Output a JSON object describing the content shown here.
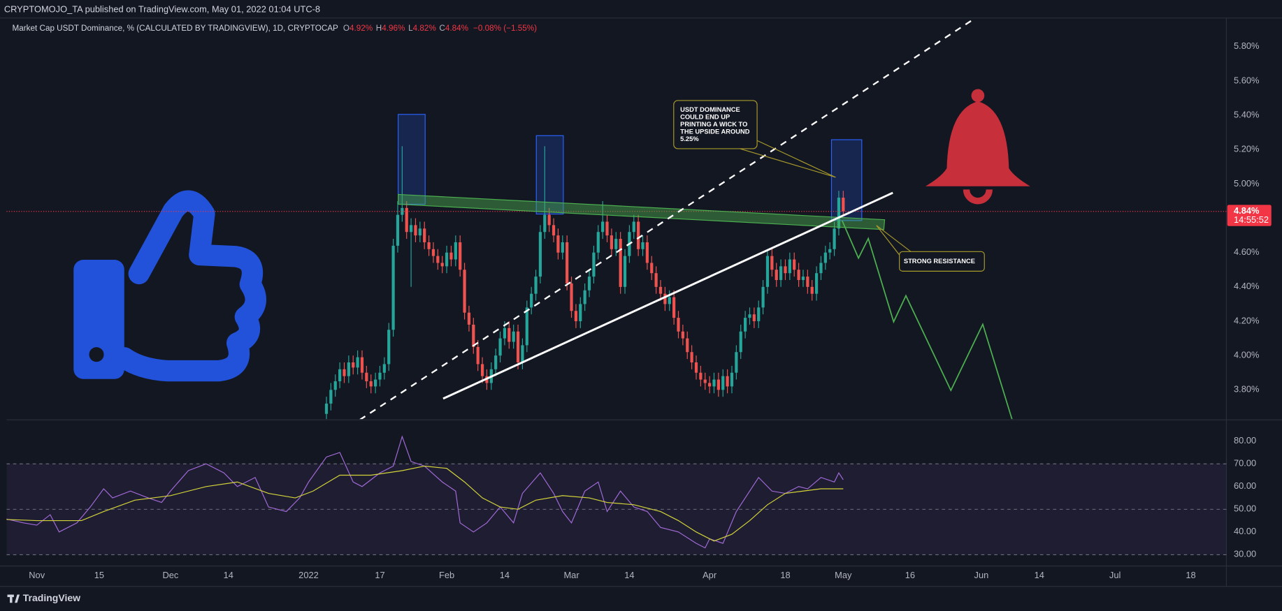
{
  "header": "CRYPTOMOJO_TA published on TradingView.com, May 01, 2022 01:04 UTC-8",
  "footer": "TradingView",
  "chart_data": [
    {
      "type": "candlestick",
      "title": "Market Cap USDT Dominance, % (CALCULATED BY TRADINGVIEW), 1D, CRYPTOCAP",
      "ohlc_readout": [
        [
          "O",
          "4.92%"
        ],
        [
          "H",
          "4.96%"
        ],
        [
          "L",
          "4.82%"
        ],
        [
          "C",
          "4.84%"
        ]
      ],
      "change": "−0.08% (−1.55%)",
      "up_color": "#26a69a",
      "down_color": "#ef5350",
      "xlim": [
        -6.8,
        267
      ],
      "ylim": [
        3.63,
        5.967
      ],
      "yticks": [
        {
          "value": 3.8,
          "label": "3.80%"
        },
        {
          "value": 4.0,
          "label": "4.00%"
        },
        {
          "value": 4.2,
          "label": "4.20%"
        },
        {
          "value": 4.4,
          "label": "4.40%"
        },
        {
          "value": 4.6,
          "label": "4.60%"
        },
        {
          "value": 4.8,
          "label": "4.80%"
        },
        {
          "value": 5.0,
          "label": "5.00%"
        },
        {
          "value": 5.2,
          "label": "5.20%"
        },
        {
          "value": 5.4,
          "label": "5.40%"
        },
        {
          "value": 5.6,
          "label": "5.60%"
        },
        {
          "value": 5.8,
          "label": "5.80%"
        }
      ],
      "last_price": {
        "value": 4.84,
        "label": "4.84%"
      },
      "countdown": "14:55:52",
      "annotations": [
        {
          "lines": [
            "USDT DOMINANCE",
            "COULD END UP",
            "PRINTING A WICK TO",
            "THE UPSIDE  AROUND",
            "5.25%"
          ]
        },
        {
          "lines": [
            "STRONG RESISTANCE"
          ]
        }
      ],
      "x": [
        65,
        66,
        67,
        68,
        69,
        70,
        71,
        72,
        73,
        74,
        75,
        76,
        77,
        78,
        79,
        80,
        81,
        82,
        83,
        84,
        85,
        86,
        87,
        88,
        89,
        90,
        91,
        92,
        93,
        94,
        95,
        96,
        97,
        98,
        99,
        100,
        101,
        102,
        103,
        104,
        105,
        106,
        107,
        108,
        109,
        110,
        111,
        112,
        113,
        114,
        115,
        116,
        117,
        118,
        119,
        120,
        121,
        122,
        123,
        124,
        125,
        126,
        127,
        128,
        129,
        130,
        131,
        132,
        133,
        134,
        135,
        136,
        137,
        138,
        139,
        140,
        141,
        142,
        143,
        144,
        145,
        146,
        147,
        148,
        149,
        150,
        151,
        152,
        153,
        154,
        155,
        156,
        157,
        158,
        159,
        160,
        161,
        162,
        163,
        164,
        165,
        166,
        167,
        168,
        169,
        170,
        171,
        172,
        173,
        174,
        175,
        176,
        177,
        178,
        179,
        180,
        181
      ],
      "open": [
        3.66,
        3.72,
        3.8,
        3.85,
        3.92,
        3.88,
        3.96,
        3.93,
        3.99,
        3.9,
        3.85,
        3.82,
        3.86,
        3.9,
        3.95,
        4.15,
        4.64,
        4.82,
        4.86,
        4.72,
        4.76,
        4.7,
        4.74,
        4.66,
        4.62,
        4.58,
        4.54,
        4.52,
        4.6,
        4.56,
        4.66,
        4.5,
        4.25,
        4.18,
        4.05,
        3.95,
        3.88,
        3.84,
        3.92,
        4.0,
        4.1,
        4.16,
        4.08,
        4.14,
        3.96,
        4.06,
        4.28,
        4.36,
        4.46,
        4.72,
        4.82,
        4.76,
        4.7,
        4.6,
        4.66,
        4.42,
        4.26,
        4.2,
        4.3,
        4.38,
        4.46,
        4.6,
        4.72,
        4.78,
        4.7,
        4.62,
        4.68,
        4.4,
        4.58,
        4.72,
        4.78,
        4.62,
        4.66,
        4.54,
        4.48,
        4.4,
        4.36,
        4.3,
        4.34,
        4.22,
        4.14,
        4.1,
        4.02,
        3.96,
        3.9,
        3.86,
        3.84,
        3.82,
        3.86,
        3.8,
        3.88,
        3.82,
        3.9,
        4.02,
        4.14,
        4.22,
        4.24,
        4.2,
        4.28,
        4.4,
        4.58,
        4.5,
        4.44,
        4.52,
        4.48,
        4.56,
        4.5,
        4.44,
        4.46,
        4.4,
        4.36,
        4.48,
        4.54,
        4.6,
        4.62,
        4.74,
        4.92
      ],
      "high": [
        3.76,
        3.84,
        3.89,
        3.96,
        3.96,
        4.0,
        4.0,
        4.03,
        4.03,
        3.94,
        3.89,
        3.9,
        3.94,
        3.99,
        4.19,
        4.68,
        4.9,
        5.22,
        4.9,
        4.8,
        4.8,
        4.78,
        4.78,
        4.7,
        4.66,
        4.62,
        4.58,
        4.64,
        4.64,
        4.7,
        4.7,
        4.54,
        4.29,
        4.22,
        4.09,
        3.99,
        3.92,
        3.96,
        4.04,
        4.14,
        4.2,
        4.2,
        4.18,
        4.18,
        4.1,
        4.32,
        4.4,
        4.5,
        4.76,
        5.22,
        4.86,
        4.8,
        4.74,
        4.7,
        4.7,
        4.46,
        4.3,
        4.34,
        4.42,
        4.5,
        4.64,
        4.76,
        4.9,
        4.82,
        4.74,
        4.72,
        4.72,
        4.62,
        4.76,
        4.82,
        4.82,
        4.7,
        4.7,
        4.58,
        4.52,
        4.44,
        4.4,
        4.38,
        4.38,
        4.26,
        4.18,
        4.14,
        4.06,
        4.0,
        3.94,
        3.9,
        3.88,
        3.9,
        3.9,
        3.92,
        3.92,
        3.94,
        4.06,
        4.18,
        4.26,
        4.28,
        4.28,
        4.32,
        4.44,
        4.62,
        4.62,
        4.54,
        4.56,
        4.56,
        4.6,
        4.6,
        4.54,
        4.5,
        4.5,
        4.44,
        4.52,
        4.58,
        4.64,
        4.66,
        4.78,
        4.96,
        4.96
      ],
      "low": [
        3.62,
        3.68,
        3.76,
        3.81,
        3.84,
        3.84,
        3.89,
        3.89,
        3.86,
        3.81,
        3.78,
        3.78,
        3.82,
        3.86,
        3.91,
        4.11,
        4.6,
        4.78,
        4.68,
        4.4,
        4.66,
        4.66,
        4.62,
        4.58,
        4.54,
        4.5,
        4.48,
        4.48,
        4.52,
        4.52,
        4.46,
        4.21,
        4.14,
        4.01,
        3.91,
        3.84,
        3.8,
        3.8,
        3.88,
        3.96,
        4.06,
        4.04,
        4.04,
        3.92,
        3.92,
        4.02,
        4.24,
        4.32,
        4.42,
        4.68,
        4.72,
        4.66,
        4.56,
        4.56,
        4.38,
        4.22,
        4.16,
        4.16,
        4.26,
        4.34,
        4.42,
        4.56,
        4.68,
        4.66,
        4.58,
        4.58,
        4.36,
        4.36,
        4.54,
        4.68,
        4.58,
        4.58,
        4.5,
        4.44,
        4.36,
        4.32,
        4.26,
        4.26,
        4.18,
        4.1,
        4.06,
        3.98,
        3.92,
        3.86,
        3.82,
        3.8,
        3.78,
        3.78,
        3.76,
        3.76,
        3.78,
        3.78,
        3.86,
        3.98,
        4.1,
        4.18,
        4.16,
        4.16,
        4.24,
        4.36,
        4.46,
        4.4,
        4.4,
        4.44,
        4.44,
        4.46,
        4.4,
        4.4,
        4.36,
        4.32,
        4.32,
        4.44,
        4.5,
        4.56,
        4.58,
        4.7,
        4.82
      ],
      "close": [
        3.72,
        3.8,
        3.85,
        3.92,
        3.88,
        3.96,
        3.93,
        3.99,
        3.9,
        3.85,
        3.82,
        3.86,
        3.9,
        3.95,
        4.15,
        4.64,
        4.82,
        4.86,
        4.72,
        4.76,
        4.7,
        4.74,
        4.66,
        4.62,
        4.58,
        4.54,
        4.52,
        4.6,
        4.56,
        4.66,
        4.5,
        4.25,
        4.18,
        4.05,
        3.95,
        3.88,
        3.84,
        3.92,
        4.0,
        4.1,
        4.16,
        4.08,
        4.14,
        3.96,
        4.06,
        4.28,
        4.36,
        4.46,
        4.72,
        4.82,
        4.76,
        4.7,
        4.6,
        4.66,
        4.42,
        4.26,
        4.2,
        4.3,
        4.38,
        4.46,
        4.6,
        4.72,
        4.78,
        4.7,
        4.62,
        4.68,
        4.4,
        4.58,
        4.72,
        4.78,
        4.62,
        4.66,
        4.54,
        4.48,
        4.4,
        4.36,
        4.3,
        4.34,
        4.22,
        4.14,
        4.1,
        4.02,
        3.96,
        3.9,
        3.86,
        3.84,
        3.82,
        3.86,
        3.8,
        3.88,
        3.82,
        3.9,
        4.02,
        4.14,
        4.22,
        4.24,
        4.2,
        4.28,
        4.4,
        4.58,
        4.5,
        4.44,
        4.52,
        4.48,
        4.56,
        4.5,
        4.44,
        4.46,
        4.4,
        4.36,
        4.48,
        4.54,
        4.6,
        4.62,
        4.74,
        4.92,
        4.84
      ]
    },
    {
      "type": "line",
      "xlim": [
        -6.8,
        267
      ],
      "ylim": [
        25,
        89
      ],
      "yticks": [
        {
          "value": 30,
          "label": "30.00"
        },
        {
          "value": 40,
          "label": "40.00"
        },
        {
          "value": 50,
          "label": "50.00"
        },
        {
          "value": 60,
          "label": "60.00"
        },
        {
          "value": 70,
          "label": "70.00"
        },
        {
          "value": 80,
          "label": "80.00"
        }
      ],
      "levels": [
        70,
        50,
        30
      ],
      "xticks": [
        {
          "value": 0,
          "label": "Nov"
        },
        {
          "value": 14,
          "label": "15"
        },
        {
          "value": 30,
          "label": "Dec"
        },
        {
          "value": 43,
          "label": "14"
        },
        {
          "value": 61,
          "label": "2022"
        },
        {
          "value": 77,
          "label": "17"
        },
        {
          "value": 92,
          "label": "Feb"
        },
        {
          "value": 105,
          "label": "14"
        },
        {
          "value": 120,
          "label": "Mar"
        },
        {
          "value": 133,
          "label": "14"
        },
        {
          "value": 151,
          "label": "Apr"
        },
        {
          "value": 168,
          "label": "18"
        },
        {
          "value": 181,
          "label": "May"
        },
        {
          "value": 196,
          "label": "16"
        },
        {
          "value": 212,
          "label": "Jun"
        },
        {
          "value": 225,
          "label": "14"
        },
        {
          "value": 242,
          "label": "Jul"
        },
        {
          "value": 259,
          "label": "18"
        }
      ],
      "series": [
        {
          "color": "#a36bd9",
          "x": [
            -7,
            -3,
            0,
            3,
            5,
            9,
            12,
            15,
            17,
            21,
            25,
            28,
            30,
            34,
            38,
            42,
            45,
            49,
            52,
            56,
            59,
            61,
            65,
            68,
            71,
            73,
            77,
            80,
            82,
            84,
            87,
            91,
            94,
            95,
            98,
            101,
            104,
            107,
            109,
            113,
            116,
            118,
            120,
            123,
            126,
            128,
            131,
            134,
            137,
            140,
            144,
            148,
            150,
            151,
            154,
            157,
            160,
            162,
            165,
            168,
            171,
            173,
            176,
            179,
            180,
            181
          ],
          "values": [
            45.8,
            44,
            43,
            47.6,
            40,
            44,
            51,
            59,
            55,
            58,
            55,
            53,
            58,
            67,
            70,
            66,
            60,
            64,
            51,
            49,
            55,
            62,
            73,
            75,
            62,
            60,
            66,
            69,
            82,
            71,
            69,
            62,
            58,
            44,
            40,
            44,
            51,
            44,
            57,
            66,
            57,
            49,
            44,
            58,
            62,
            49,
            58,
            51,
            49,
            42,
            40,
            35,
            33,
            37,
            35,
            49,
            58,
            64,
            58,
            57,
            60,
            59,
            64,
            62,
            66,
            63
          ]
        },
        {
          "color": "#d4d43a",
          "x": [
            -7,
            0,
            10,
            15,
            22,
            30,
            38,
            45,
            52,
            58,
            62,
            68,
            75,
            82,
            87,
            92,
            96,
            100,
            104,
            108,
            112,
            118,
            124,
            128,
            134,
            140,
            144,
            148,
            152,
            156,
            160,
            164,
            168,
            172,
            176,
            181
          ],
          "values": [
            45.5,
            45,
            45,
            49,
            54,
            56,
            60,
            62,
            57,
            55,
            58,
            65,
            65,
            67,
            69,
            68,
            62,
            55,
            51,
            50,
            54,
            56,
            55,
            53,
            52,
            49,
            45,
            40,
            36,
            39,
            45,
            52,
            57,
            58,
            59,
            59
          ]
        }
      ]
    }
  ]
}
